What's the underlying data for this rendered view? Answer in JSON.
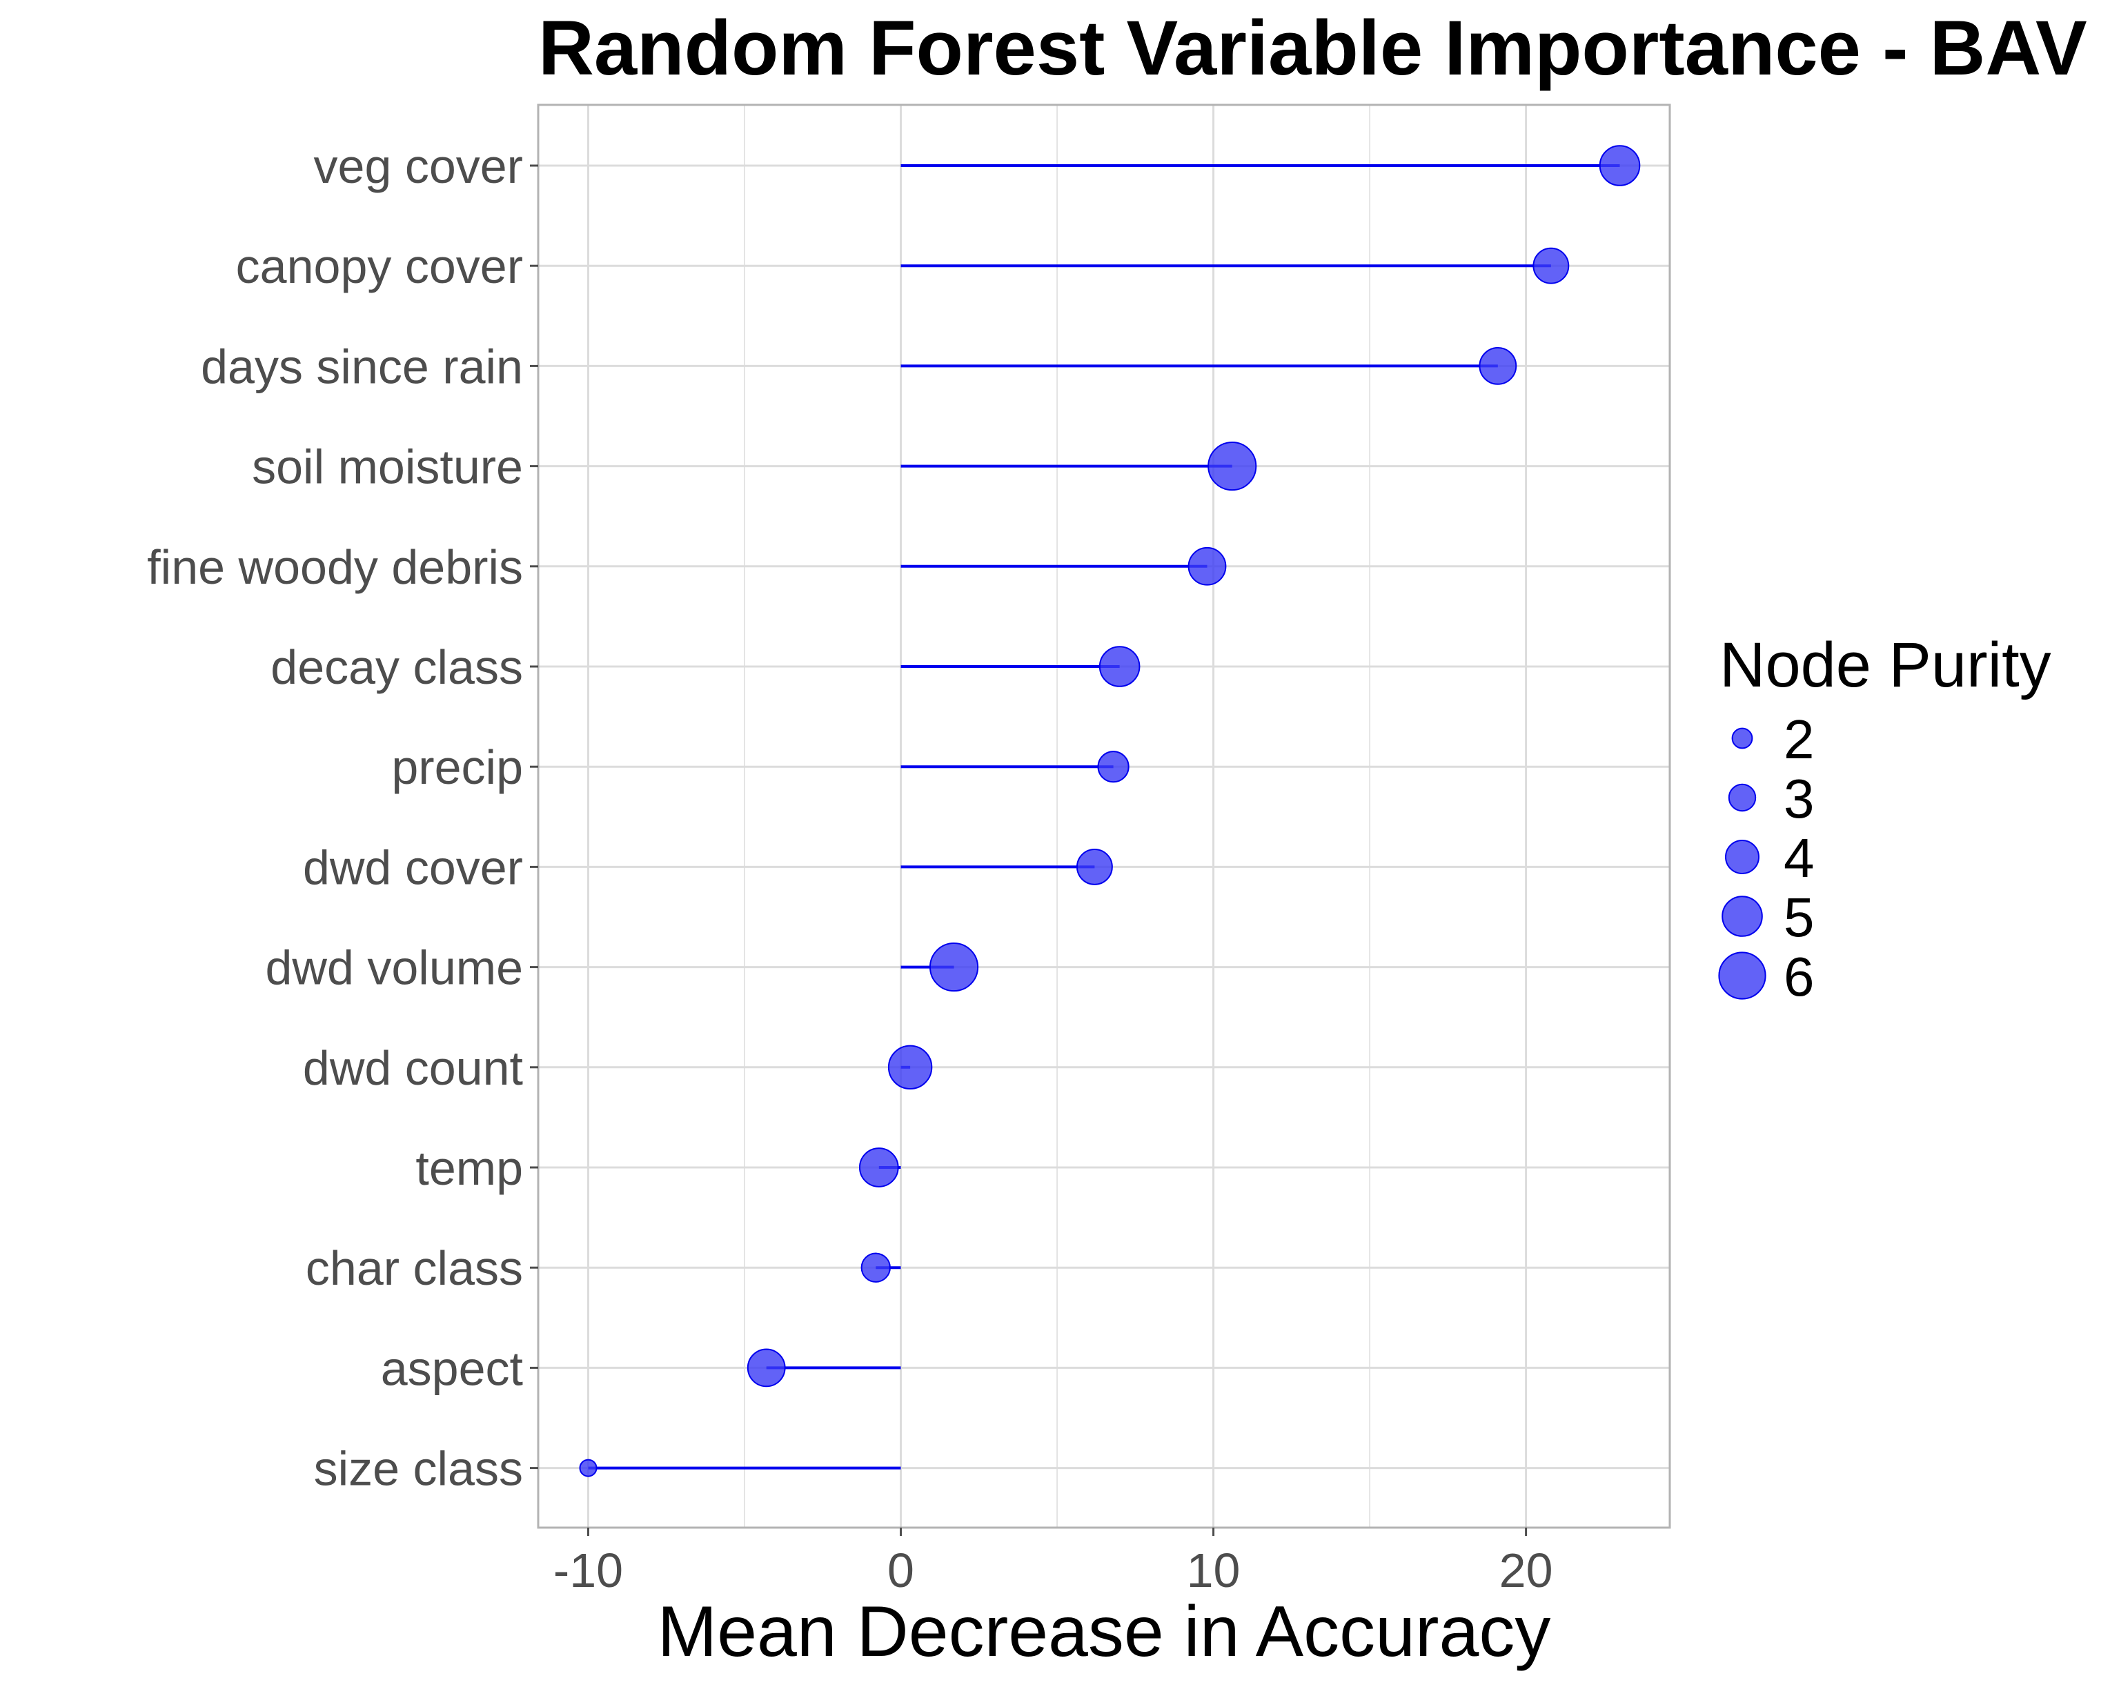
{
  "chart_data": {
    "type": "lollipop",
    "title": "Random Forest Variable Importance - BAV",
    "xlabel": "Mean Decrease in Accuracy",
    "ylabel": "",
    "xlim": [
      -11.6,
      24.6
    ],
    "x_ticks": [
      -10,
      0,
      10,
      20
    ],
    "grid": true,
    "categories": [
      "veg cover",
      "canopy cover",
      "days since rain",
      "soil moisture",
      "fine woody debris",
      "decay class",
      "precip",
      "dwd cover",
      "dwd volume",
      "dwd count",
      "temp",
      "char class",
      "aspect",
      "size class"
    ],
    "values": [
      23.0,
      20.8,
      19.1,
      10.6,
      9.8,
      7.0,
      6.8,
      6.2,
      1.7,
      0.3,
      -0.7,
      -0.8,
      -4.3,
      -10.0
    ],
    "node_purity": [
      5.0,
      4.3,
      4.5,
      6.2,
      4.6,
      5.0,
      3.6,
      4.3,
      6.2,
      5.5,
      4.8,
      3.3,
      4.6,
      1.5
    ],
    "legend": {
      "title": "Node Purity",
      "placement": "right",
      "entries": [
        2,
        3,
        4,
        5,
        6
      ]
    },
    "colors": {
      "segment": "#0000ee",
      "point_fill": "#3b3bf5",
      "point_stroke": "#0000ee",
      "grid": "#dcdcdc",
      "panel_border": "#b3b3b3"
    }
  }
}
